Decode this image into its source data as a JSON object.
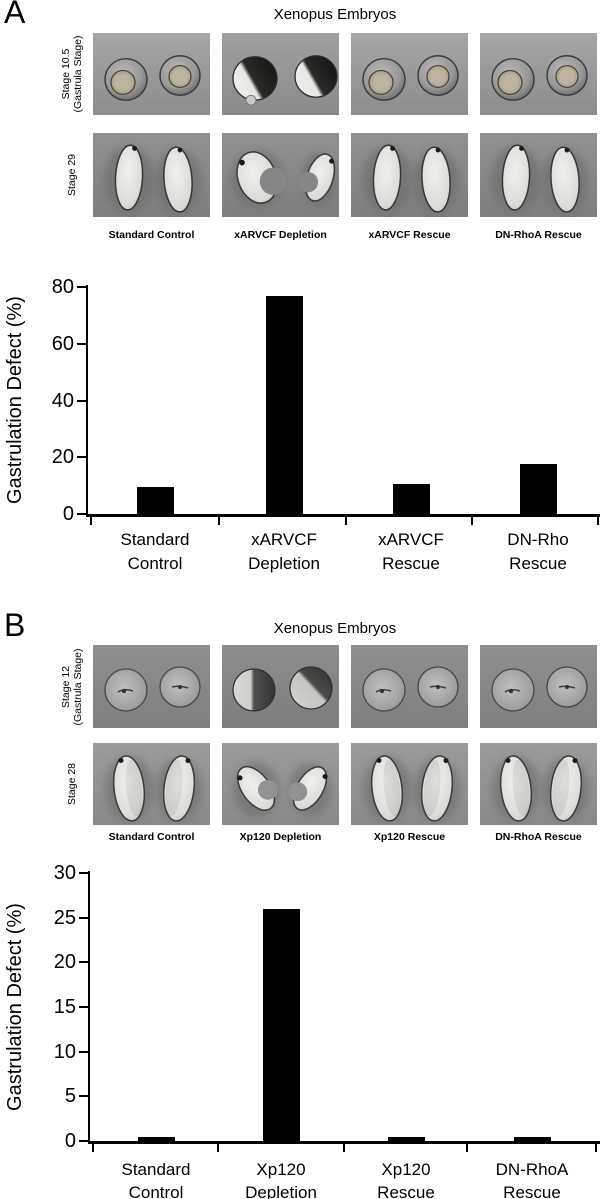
{
  "figure": {
    "panels": [
      {
        "panel_label": "A",
        "title": "Xenopus Embryos",
        "rows": [
          {
            "stage_label": "Stage 10.5 (Gastrula Stage)",
            "label_lines": [
              "Stage 10.5",
              "(Gastrula Stage)"
            ],
            "cells": [
              "spheres-ring",
              "spheres-split",
              "spheres-ring",
              "spheres-ring"
            ]
          },
          {
            "stage_label": "Stage 29",
            "label_lines": [
              "Stage 29"
            ],
            "cells": [
              "tadpoles",
              "tadpoles-bent",
              "tadpoles",
              "tadpoles"
            ]
          }
        ],
        "column_labels": [
          "Standard Control",
          "xARVCF Depletion",
          "xARVCF Rescue",
          "DN-RhoA Rescue"
        ]
      },
      {
        "panel_label": "B",
        "title": "Xenopus Embryos",
        "rows": [
          {
            "stage_label": "Stage 12 (Gastrula Stage)",
            "label_lines": [
              "Stage 12",
              "(Gastrula Stage)"
            ],
            "cells": [
              "spheres-spot",
              "spheres-split2",
              "spheres-spot",
              "spheres-spot"
            ]
          },
          {
            "stage_label": "Stage 28",
            "label_lines": [
              "Stage 28"
            ],
            "cells": [
              "beans",
              "beans-bent",
              "beans",
              "beans"
            ]
          }
        ],
        "column_labels": [
          "Standard Control",
          "Xp120 Depletion",
          "Xp120 Rescue",
          "DN-RhoA Rescue"
        ]
      }
    ]
  },
  "chart_data": [
    {
      "type": "bar",
      "title": "",
      "categories": [
        "Standard Control",
        "xARVCF Depletion",
        "xARVCF Rescue",
        "DN-Rho Rescue"
      ],
      "categories_lines": [
        [
          "Standard",
          "Control"
        ],
        [
          "xARVCF",
          "Depletion"
        ],
        [
          "xARVCF",
          "Rescue"
        ],
        [
          "DN-Rho",
          "Rescue"
        ]
      ],
      "values": [
        9.5,
        77,
        10.5,
        17.5
      ],
      "xlabel": "",
      "ylabel": "Gastrulation Defect (%)",
      "ylim": [
        0,
        80
      ],
      "yticks": [
        0,
        20,
        40,
        60,
        80
      ],
      "bar_color": "#000000",
      "grid": false,
      "legend": null
    },
    {
      "type": "bar",
      "title": "",
      "categories": [
        "Standard Control",
        "Xp120 Depletion",
        "Xp120 Rescue",
        "DN-RhoA Rescue"
      ],
      "categories_lines": [
        [
          "Standard",
          "Control"
        ],
        [
          "Xp120",
          "Depletion"
        ],
        [
          "Xp120",
          "Rescue"
        ],
        [
          "DN-RhoA",
          "Rescue"
        ]
      ],
      "values": [
        0.5,
        26,
        0.5,
        0.5
      ],
      "xlabel": "",
      "ylabel": "Gastrulation Defect (%)",
      "ylim": [
        0,
        30
      ],
      "yticks": [
        0,
        5,
        10,
        15,
        20,
        25,
        30
      ],
      "bar_color": "#000000",
      "grid": false,
      "legend": null
    }
  ]
}
